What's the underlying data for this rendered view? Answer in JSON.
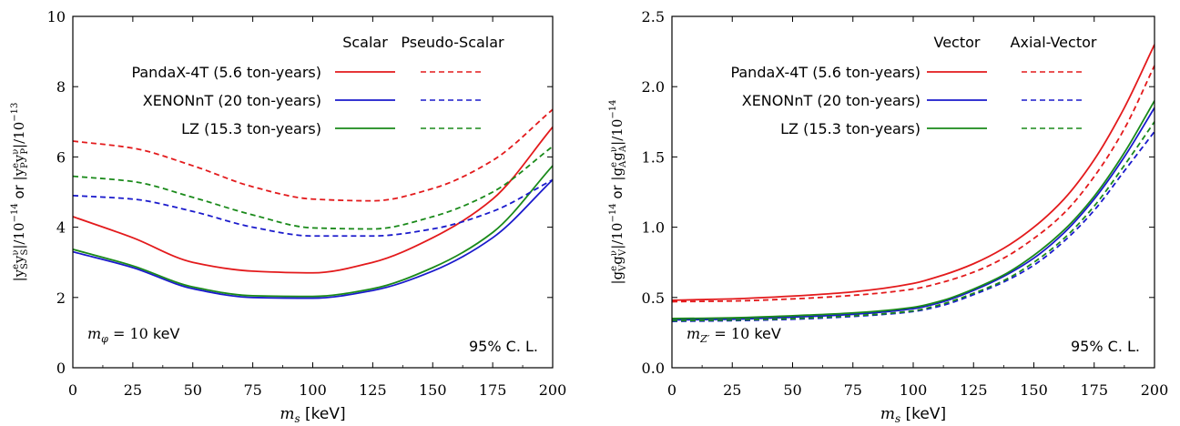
{
  "figure": {
    "panels": [
      {
        "ylabel": "|y_S^e y_S^ν|/10^-14 or |y_P^e y_P^ν|/10^-13",
        "xlabel": "m_s [keV]",
        "annotation_left": "m_φ = 10 keV",
        "annotation_right": "95% C. L.",
        "legend_col1": "Scalar",
        "legend_col2": "Pseudo-Scalar"
      },
      {
        "ylabel": "|g_V^e g_V^ν|/10^-14 or |g_A^e g_A^ν|/10^-14",
        "xlabel": "m_s [keV]",
        "annotation_left": "m_Z′ = 10 keV",
        "annotation_right": "95% C. L.",
        "legend_col1": "Vector",
        "legend_col2": "Axial-Vector"
      }
    ]
  },
  "chart_data": [
    {
      "type": "line",
      "xlabel": "m_s [keV]",
      "ylabel": "|y_S^e y_S^ν|/10^-14 or |y_P^e y_P^ν|/10^-13",
      "xlim": [
        0,
        200
      ],
      "ylim": [
        0,
        10
      ],
      "xticks": [
        "0",
        "25",
        "50",
        "75",
        "100",
        "125",
        "150",
        "175",
        "200"
      ],
      "yticks": [
        "0",
        "2",
        "4",
        "6",
        "8",
        "10"
      ],
      "legend_entries": [
        "PandaX-4T (5.6 ton-years)",
        "XENONnT (20 ton-years)",
        "LZ (15.3 ton-years)"
      ],
      "legend_columns": [
        "Scalar",
        "Pseudo-Scalar"
      ],
      "legend_placement": "top",
      "grid": false,
      "x": [
        0,
        25,
        50,
        75,
        100,
        125,
        150,
        175,
        200
      ],
      "series": [
        {
          "experiment": "PandaX-4T",
          "kind": "Scalar",
          "color": "#e31a1c",
          "dashed": false,
          "values": [
            4.3,
            3.7,
            3.0,
            2.75,
            2.7,
            3.0,
            3.7,
            4.8,
            6.85
          ]
        },
        {
          "experiment": "XENONnT",
          "kind": "Scalar",
          "color": "#1a1acc",
          "dashed": false,
          "values": [
            3.3,
            2.85,
            2.25,
            2.0,
            1.98,
            2.2,
            2.75,
            3.7,
            5.35
          ]
        },
        {
          "experiment": "LZ",
          "kind": "Scalar",
          "color": "#1a8a1a",
          "dashed": false,
          "values": [
            3.37,
            2.9,
            2.3,
            2.05,
            2.03,
            2.25,
            2.85,
            3.85,
            5.75
          ]
        },
        {
          "experiment": "PandaX-4T",
          "kind": "Pseudo-Scalar",
          "color": "#e31a1c",
          "dashed": true,
          "values": [
            6.45,
            6.25,
            5.75,
            5.15,
            4.8,
            4.75,
            5.1,
            5.9,
            7.35
          ]
        },
        {
          "experiment": "XENONnT",
          "kind": "Pseudo-Scalar",
          "color": "#1a1acc",
          "dashed": true,
          "values": [
            4.9,
            4.8,
            4.45,
            4.0,
            3.75,
            3.75,
            3.95,
            4.45,
            5.35
          ]
        },
        {
          "experiment": "LZ",
          "kind": "Pseudo-Scalar",
          "color": "#1a8a1a",
          "dashed": true,
          "values": [
            5.45,
            5.3,
            4.85,
            4.35,
            3.98,
            3.95,
            4.3,
            5.0,
            6.3
          ]
        }
      ]
    },
    {
      "type": "line",
      "xlabel": "m_s [keV]",
      "ylabel": "|g_V^e g_V^ν|/10^-14 or |g_A^e g_A^ν|/10^-14",
      "xlim": [
        0,
        200
      ],
      "ylim": [
        0,
        2.5
      ],
      "xticks": [
        "0",
        "25",
        "50",
        "75",
        "100",
        "125",
        "150",
        "175",
        "200"
      ],
      "yticks": [
        "0.0",
        "0.5",
        "1.0",
        "1.5",
        "2.0",
        "2.5"
      ],
      "legend_entries": [
        "PandaX-4T (5.6 ton-years)",
        "XENONnT (20 ton-years)",
        "LZ (15.3 ton-years)"
      ],
      "legend_columns": [
        "Vector",
        "Axial-Vector"
      ],
      "legend_placement": "top",
      "grid": false,
      "x": [
        0,
        25,
        50,
        75,
        100,
        112.5,
        125,
        137.5,
        150,
        162.5,
        175,
        187.5,
        200
      ],
      "series": [
        {
          "experiment": "PandaX-4T",
          "kind": "Vector",
          "color": "#e31a1c",
          "dashed": false,
          "values": [
            0.48,
            0.49,
            0.51,
            0.54,
            0.6,
            0.66,
            0.74,
            0.85,
            1.0,
            1.2,
            1.48,
            1.85,
            2.3
          ]
        },
        {
          "experiment": "XENONnT",
          "kind": "Vector",
          "color": "#1a1acc",
          "dashed": false,
          "values": [
            0.34,
            0.345,
            0.36,
            0.38,
            0.42,
            0.47,
            0.55,
            0.65,
            0.78,
            0.96,
            1.2,
            1.5,
            1.85
          ]
        },
        {
          "experiment": "LZ",
          "kind": "Vector",
          "color": "#1a8a1a",
          "dashed": false,
          "values": [
            0.35,
            0.355,
            0.37,
            0.39,
            0.43,
            0.48,
            0.56,
            0.66,
            0.8,
            0.98,
            1.22,
            1.53,
            1.9
          ]
        },
        {
          "experiment": "PandaX-4T",
          "kind": "Axial-Vector",
          "color": "#e31a1c",
          "dashed": true,
          "values": [
            0.47,
            0.475,
            0.49,
            0.515,
            0.56,
            0.61,
            0.68,
            0.78,
            0.92,
            1.1,
            1.36,
            1.7,
            2.15
          ]
        },
        {
          "experiment": "XENONnT",
          "kind": "Axial-Vector",
          "color": "#1a1acc",
          "dashed": true,
          "values": [
            0.33,
            0.335,
            0.345,
            0.365,
            0.4,
            0.445,
            0.52,
            0.61,
            0.73,
            0.9,
            1.12,
            1.4,
            1.68
          ]
        },
        {
          "experiment": "LZ",
          "kind": "Axial-Vector",
          "color": "#1a8a1a",
          "dashed": true,
          "values": [
            0.335,
            0.34,
            0.35,
            0.37,
            0.405,
            0.455,
            0.53,
            0.62,
            0.75,
            0.92,
            1.15,
            1.44,
            1.75
          ]
        }
      ]
    }
  ]
}
